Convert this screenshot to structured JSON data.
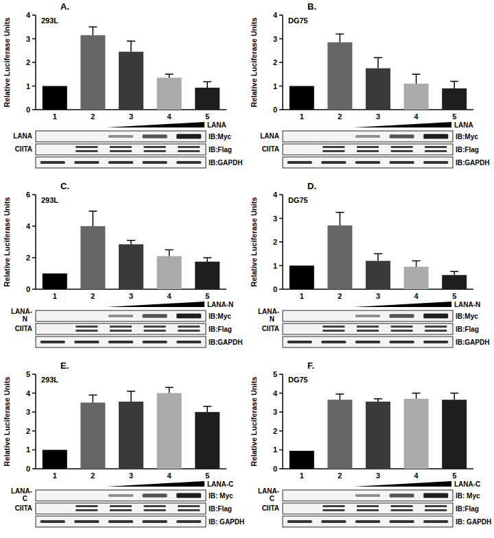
{
  "chart_data": [
    {
      "type": "bar",
      "title": "A.",
      "subtitle": "293L",
      "y_label": "Relative Luciferase Units",
      "categories": [
        "1",
        "2",
        "3",
        "4",
        "5"
      ],
      "values": [
        1,
        3.15,
        2.45,
        1.35,
        0.93
      ],
      "errors": [
        0,
        0.35,
        0.45,
        0.15,
        0.25
      ],
      "colors": [
        "#000000",
        "#666666",
        "#3a3a3a",
        "#aaaaaa",
        "#1e1e1e"
      ],
      "ylim": [
        0,
        4
      ],
      "yticks": [
        0,
        1,
        2,
        3,
        4
      ],
      "blot": {
        "ramp_label": "LANA",
        "rows": [
          {
            "label": "LANA",
            "probe": "IB:Myc"
          },
          {
            "label": "CIITA",
            "probe": "IB:Flag"
          },
          {
            "probe": "IB:GAPDH"
          }
        ]
      }
    },
    {
      "type": "bar",
      "title": "B.",
      "subtitle": "DG75",
      "y_label": "Relative Luciferase Units",
      "categories": [
        "1",
        "2",
        "3",
        "4",
        "5"
      ],
      "values": [
        1,
        2.85,
        1.75,
        1.1,
        0.9
      ],
      "errors": [
        0,
        0.35,
        0.45,
        0.4,
        0.3
      ],
      "colors": [
        "#000000",
        "#666666",
        "#3a3a3a",
        "#aaaaaa",
        "#1e1e1e"
      ],
      "ylim": [
        0,
        4
      ],
      "yticks": [
        0,
        1,
        2,
        3,
        4
      ],
      "blot": {
        "ramp_label": "LANA",
        "rows": [
          {
            "label": "LANA",
            "probe": "IB:Myc"
          },
          {
            "label": "CIITA",
            "probe": "IB:Flag"
          },
          {
            "probe": "IB:GAPDH"
          }
        ]
      }
    },
    {
      "type": "bar",
      "title": "C.",
      "subtitle": "293L",
      "y_label": "Relative Luciferase Units",
      "categories": [
        "1",
        "2",
        "3",
        "4",
        "5"
      ],
      "values": [
        1,
        4.0,
        2.85,
        2.1,
        1.75
      ],
      "errors": [
        0,
        0.95,
        0.25,
        0.4,
        0.25
      ],
      "colors": [
        "#000000",
        "#666666",
        "#3a3a3a",
        "#aaaaaa",
        "#1e1e1e"
      ],
      "ylim": [
        0,
        6
      ],
      "yticks": [
        0,
        2,
        4,
        6
      ],
      "blot": {
        "ramp_label": "LANA-N",
        "rows": [
          {
            "label": "LANA-N",
            "probe": "IB:Myc"
          },
          {
            "label": "CIITA",
            "probe": "IB:Flag"
          },
          {
            "probe": "IB:GAPDH"
          }
        ]
      }
    },
    {
      "type": "bar",
      "title": "D.",
      "subtitle": "DG75",
      "y_label": "Relative Luciferase Units",
      "categories": [
        "1",
        "2",
        "3",
        "4",
        "5"
      ],
      "values": [
        1,
        2.7,
        1.2,
        0.95,
        0.6
      ],
      "errors": [
        0,
        0.55,
        0.3,
        0.25,
        0.15
      ],
      "colors": [
        "#000000",
        "#666666",
        "#3a3a3a",
        "#aaaaaa",
        "#1e1e1e"
      ],
      "ylim": [
        0,
        4
      ],
      "yticks": [
        0,
        1,
        2,
        3,
        4
      ],
      "blot": {
        "ramp_label": "LANA-N",
        "rows": [
          {
            "label": "LANA-N",
            "probe": "IB:Myc"
          },
          {
            "label": "CIITA",
            "probe": "IB:Flag"
          },
          {
            "probe": "IB:GAPDH"
          }
        ]
      }
    },
    {
      "type": "bar",
      "title": "E.",
      "subtitle": "293L",
      "y_label": "Relative Luciferase Units",
      "categories": [
        "1",
        "2",
        "3",
        "4",
        "5"
      ],
      "values": [
        1,
        3.5,
        3.55,
        4.0,
        3.0
      ],
      "errors": [
        0,
        0.4,
        0.55,
        0.3,
        0.3
      ],
      "colors": [
        "#000000",
        "#666666",
        "#3a3a3a",
        "#aaaaaa",
        "#1e1e1e"
      ],
      "ylim": [
        0,
        5
      ],
      "yticks": [
        0,
        1,
        2,
        3,
        4,
        5
      ],
      "blot": {
        "ramp_label": "LANA-C",
        "rows": [
          {
            "label": "LANA-C",
            "probe": "IB: Myc"
          },
          {
            "label": "CIITA",
            "probe": "IB:Flag"
          },
          {
            "probe": "IB: GAPDH"
          }
        ]
      }
    },
    {
      "type": "bar",
      "title": "F.",
      "subtitle": "DG75",
      "y_label": "Relative Luciferase Units",
      "categories": [
        "1",
        "2",
        "3",
        "4",
        "5"
      ],
      "values": [
        0.95,
        3.65,
        3.55,
        3.7,
        3.65
      ],
      "errors": [
        0,
        0.3,
        0.15,
        0.3,
        0.35
      ],
      "colors": [
        "#000000",
        "#666666",
        "#3a3a3a",
        "#aaaaaa",
        "#1e1e1e"
      ],
      "ylim": [
        0,
        5
      ],
      "yticks": [
        0,
        1,
        2,
        3,
        4,
        5
      ],
      "blot": {
        "ramp_label": "LANA-C",
        "rows": [
          {
            "label": "LANA-C",
            "probe": "IB: Myc"
          },
          {
            "label": "CIITA",
            "probe": "IB:Flag"
          },
          {
            "probe": "IB: GAPDH"
          }
        ]
      }
    }
  ]
}
